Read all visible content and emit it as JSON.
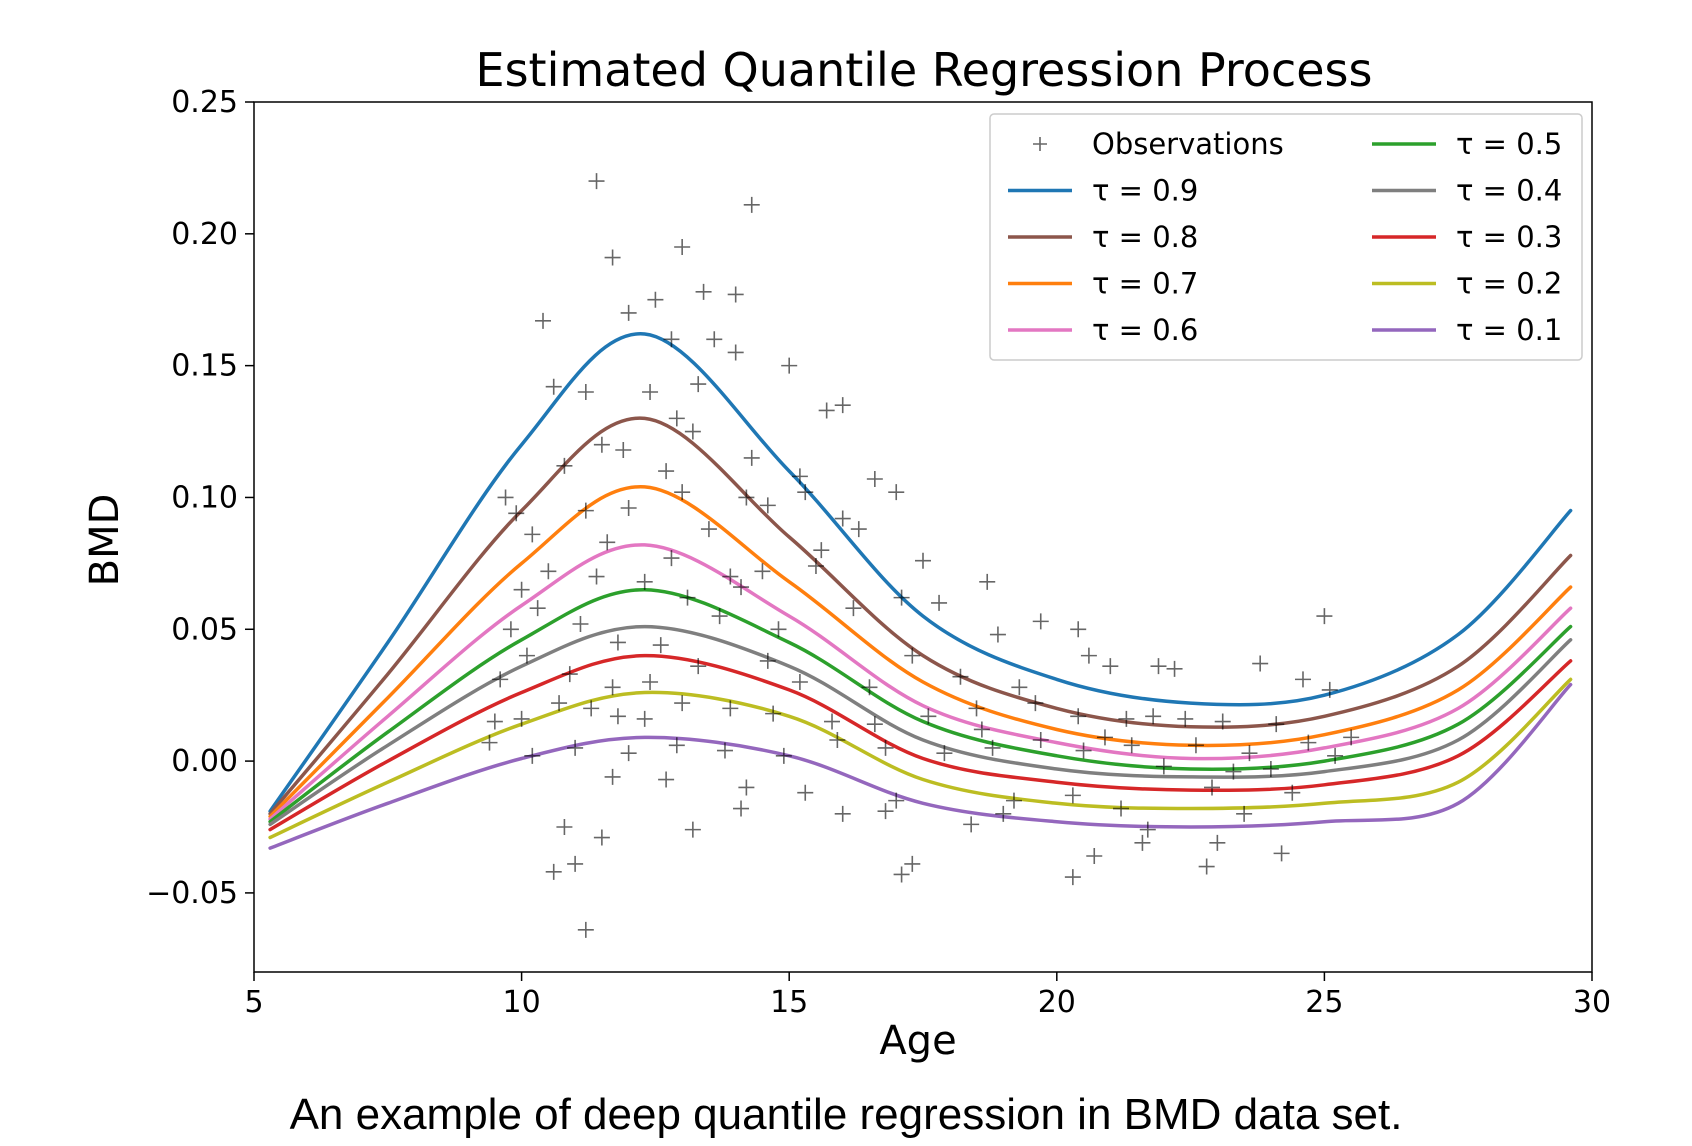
{
  "chart_data": {
    "type": "line",
    "title": "Estimated Quantile Regression Process",
    "xlabel": "Age",
    "ylabel": "BMD",
    "xlim": [
      5,
      30
    ],
    "ylim": [
      -0.08,
      0.25
    ],
    "xticks": [
      5,
      10,
      15,
      20,
      25,
      30
    ],
    "xtick_labels": [
      "5",
      "10",
      "15",
      "20",
      "25",
      "30"
    ],
    "yticks": [
      -0.05,
      0.0,
      0.05,
      0.1,
      0.15,
      0.2,
      0.25
    ],
    "ytick_labels": [
      "−0.05",
      "0.00",
      "0.05",
      "0.10",
      "0.15",
      "0.20",
      "0.25"
    ],
    "grid": false,
    "legend_position": "top-right",
    "x": [
      5.3,
      7.5,
      10,
      12.3,
      15,
      17.5,
      20,
      22.5,
      25,
      27.5,
      29.6
    ],
    "series": [
      {
        "name": "τ = 0.9",
        "color": "#1f77b4",
        "values": [
          -0.019,
          0.045,
          0.12,
          0.162,
          0.11,
          0.055,
          0.031,
          0.022,
          0.025,
          0.048,
          0.095
        ]
      },
      {
        "name": "τ = 0.8",
        "color": "#8c564b",
        "values": [
          -0.02,
          0.033,
          0.095,
          0.13,
          0.085,
          0.04,
          0.02,
          0.013,
          0.017,
          0.036,
          0.078
        ]
      },
      {
        "name": "τ = 0.7",
        "color": "#ff7f0e",
        "values": [
          -0.021,
          0.024,
          0.075,
          0.104,
          0.068,
          0.03,
          0.012,
          0.006,
          0.01,
          0.027,
          0.066
        ]
      },
      {
        "name": "τ = 0.6",
        "color": "#e377c2",
        "values": [
          -0.022,
          0.017,
          0.059,
          0.082,
          0.055,
          0.021,
          0.007,
          0.001,
          0.005,
          0.02,
          0.058
        ]
      },
      {
        "name": "τ = 0.5",
        "color": "#2ca02c",
        "values": [
          -0.023,
          0.011,
          0.046,
          0.065,
          0.045,
          0.015,
          0.002,
          -0.003,
          0.0,
          0.014,
          0.051
        ]
      },
      {
        "name": "τ = 0.4",
        "color": "#7f7f7f",
        "values": [
          -0.024,
          0.006,
          0.036,
          0.051,
          0.036,
          0.008,
          -0.003,
          -0.006,
          -0.004,
          0.008,
          0.046
        ]
      },
      {
        "name": "τ = 0.3",
        "color": "#d62728",
        "values": [
          -0.026,
          0.0,
          0.026,
          0.04,
          0.027,
          0.001,
          -0.008,
          -0.011,
          -0.009,
          0.002,
          0.038
        ]
      },
      {
        "name": "τ = 0.2",
        "color": "#bcbd22",
        "values": [
          -0.029,
          -0.008,
          0.014,
          0.026,
          0.017,
          -0.007,
          -0.016,
          -0.018,
          -0.016,
          -0.008,
          0.031
        ]
      },
      {
        "name": "τ = 0.1",
        "color": "#9467bd",
        "values": [
          -0.033,
          -0.016,
          0.001,
          0.009,
          0.002,
          -0.016,
          -0.023,
          -0.025,
          -0.023,
          -0.016,
          0.029
        ]
      }
    ],
    "observations": {
      "name": "Observations",
      "color": "#000000",
      "points": [
        [
          10.4,
          0.167
        ],
        [
          11.4,
          0.22
        ],
        [
          11.7,
          0.191
        ],
        [
          13.0,
          0.195
        ],
        [
          14.3,
          0.211
        ],
        [
          12.0,
          0.17
        ],
        [
          12.5,
          0.175
        ],
        [
          13.4,
          0.178
        ],
        [
          14.0,
          0.177
        ],
        [
          13.6,
          0.16
        ],
        [
          12.8,
          0.16
        ],
        [
          14.0,
          0.155
        ],
        [
          15.0,
          0.15
        ],
        [
          10.6,
          0.142
        ],
        [
          11.2,
          0.14
        ],
        [
          12.4,
          0.14
        ],
        [
          13.3,
          0.143
        ],
        [
          12.9,
          0.13
        ],
        [
          13.2,
          0.125
        ],
        [
          14.3,
          0.115
        ],
        [
          11.5,
          0.12
        ],
        [
          10.8,
          0.112
        ],
        [
          11.9,
          0.118
        ],
        [
          12.7,
          0.11
        ],
        [
          13.0,
          0.102
        ],
        [
          15.2,
          0.108
        ],
        [
          16.6,
          0.107
        ],
        [
          17.0,
          0.102
        ],
        [
          15.7,
          0.133
        ],
        [
          16.0,
          0.135
        ],
        [
          9.7,
          0.1
        ],
        [
          9.9,
          0.094
        ],
        [
          11.2,
          0.095
        ],
        [
          12.0,
          0.096
        ],
        [
          13.5,
          0.088
        ],
        [
          14.2,
          0.1
        ],
        [
          14.6,
          0.097
        ],
        [
          15.3,
          0.102
        ],
        [
          10.2,
          0.086
        ],
        [
          11.6,
          0.083
        ],
        [
          12.8,
          0.077
        ],
        [
          13.9,
          0.07
        ],
        [
          14.5,
          0.072
        ],
        [
          15.6,
          0.08
        ],
        [
          16.0,
          0.092
        ],
        [
          10.0,
          0.065
        ],
        [
          10.5,
          0.072
        ],
        [
          11.4,
          0.07
        ],
        [
          12.3,
          0.068
        ],
        [
          13.1,
          0.062
        ],
        [
          14.1,
          0.066
        ],
        [
          15.5,
          0.074
        ],
        [
          16.3,
          0.088
        ],
        [
          17.5,
          0.076
        ],
        [
          18.7,
          0.068
        ],
        [
          9.8,
          0.05
        ],
        [
          10.3,
          0.058
        ],
        [
          11.1,
          0.052
        ],
        [
          11.8,
          0.045
        ],
        [
          12.6,
          0.044
        ],
        [
          13.7,
          0.055
        ],
        [
          14.8,
          0.05
        ],
        [
          16.2,
          0.058
        ],
        [
          17.1,
          0.062
        ],
        [
          17.8,
          0.06
        ],
        [
          18.9,
          0.048
        ],
        [
          19.7,
          0.053
        ],
        [
          20.4,
          0.05
        ],
        [
          9.6,
          0.031
        ],
        [
          10.1,
          0.04
        ],
        [
          10.9,
          0.033
        ],
        [
          11.7,
          0.028
        ],
        [
          12.4,
          0.03
        ],
        [
          13.3,
          0.036
        ],
        [
          14.6,
          0.038
        ],
        [
          15.2,
          0.03
        ],
        [
          16.5,
          0.028
        ],
        [
          17.3,
          0.04
        ],
        [
          18.2,
          0.032
        ],
        [
          19.3,
          0.028
        ],
        [
          20.6,
          0.04
        ],
        [
          21.0,
          0.036
        ],
        [
          21.9,
          0.036
        ],
        [
          22.2,
          0.035
        ],
        [
          23.8,
          0.037
        ],
        [
          24.6,
          0.031
        ],
        [
          25.0,
          0.055
        ],
        [
          25.1,
          0.027
        ],
        [
          9.5,
          0.015
        ],
        [
          10.0,
          0.016
        ],
        [
          10.7,
          0.022
        ],
        [
          11.3,
          0.02
        ],
        [
          11.8,
          0.017
        ],
        [
          12.3,
          0.016
        ],
        [
          13.0,
          0.022
        ],
        [
          13.9,
          0.02
        ],
        [
          14.7,
          0.018
        ],
        [
          15.8,
          0.015
        ],
        [
          16.6,
          0.014
        ],
        [
          17.6,
          0.017
        ],
        [
          18.5,
          0.02
        ],
        [
          19.6,
          0.022
        ],
        [
          20.4,
          0.017
        ],
        [
          21.3,
          0.016
        ],
        [
          21.8,
          0.017
        ],
        [
          22.4,
          0.016
        ],
        [
          23.1,
          0.015
        ],
        [
          24.1,
          0.014
        ],
        [
          9.4,
          0.007
        ],
        [
          10.2,
          0.002
        ],
        [
          11.0,
          0.005
        ],
        [
          12.0,
          0.003
        ],
        [
          12.9,
          0.006
        ],
        [
          13.8,
          0.004
        ],
        [
          14.9,
          0.002
        ],
        [
          15.9,
          0.008
        ],
        [
          16.8,
          0.005
        ],
        [
          17.9,
          0.003
        ],
        [
          18.8,
          0.005
        ],
        [
          19.7,
          0.008
        ],
        [
          20.5,
          0.004
        ],
        [
          21.4,
          0.006
        ],
        [
          22.6,
          0.006
        ],
        [
          23.6,
          0.003
        ],
        [
          24.7,
          0.007
        ],
        [
          25.2,
          0.002
        ],
        [
          25.5,
          0.009
        ],
        [
          11.7,
          -0.006
        ],
        [
          12.7,
          -0.007
        ],
        [
          14.2,
          -0.01
        ],
        [
          15.3,
          -0.012
        ],
        [
          16.0,
          -0.02
        ],
        [
          17.0,
          -0.015
        ],
        [
          18.4,
          -0.024
        ],
        [
          19.2,
          -0.015
        ],
        [
          20.3,
          -0.013
        ],
        [
          21.2,
          -0.018
        ],
        [
          22.9,
          -0.01
        ],
        [
          23.5,
          -0.02
        ],
        [
          24.4,
          -0.012
        ],
        [
          13.2,
          -0.026
        ],
        [
          10.8,
          -0.025
        ],
        [
          11.5,
          -0.029
        ],
        [
          10.6,
          -0.042
        ],
        [
          11.0,
          -0.039
        ],
        [
          17.1,
          -0.043
        ],
        [
          17.3,
          -0.039
        ],
        [
          20.3,
          -0.044
        ],
        [
          20.7,
          -0.036
        ],
        [
          21.6,
          -0.031
        ],
        [
          22.8,
          -0.04
        ],
        [
          23.0,
          -0.031
        ],
        [
          24.2,
          -0.035
        ],
        [
          11.2,
          -0.064
        ],
        [
          14.1,
          -0.018
        ],
        [
          16.8,
          -0.019
        ],
        [
          19.0,
          -0.02
        ],
        [
          21.7,
          -0.026
        ],
        [
          18.6,
          0.012
        ],
        [
          20.9,
          0.009
        ],
        [
          22.0,
          -0.002
        ],
        [
          23.3,
          -0.004
        ],
        [
          24.0,
          -0.003
        ]
      ]
    }
  },
  "caption": "An example of deep quantile regression in BMD data set."
}
